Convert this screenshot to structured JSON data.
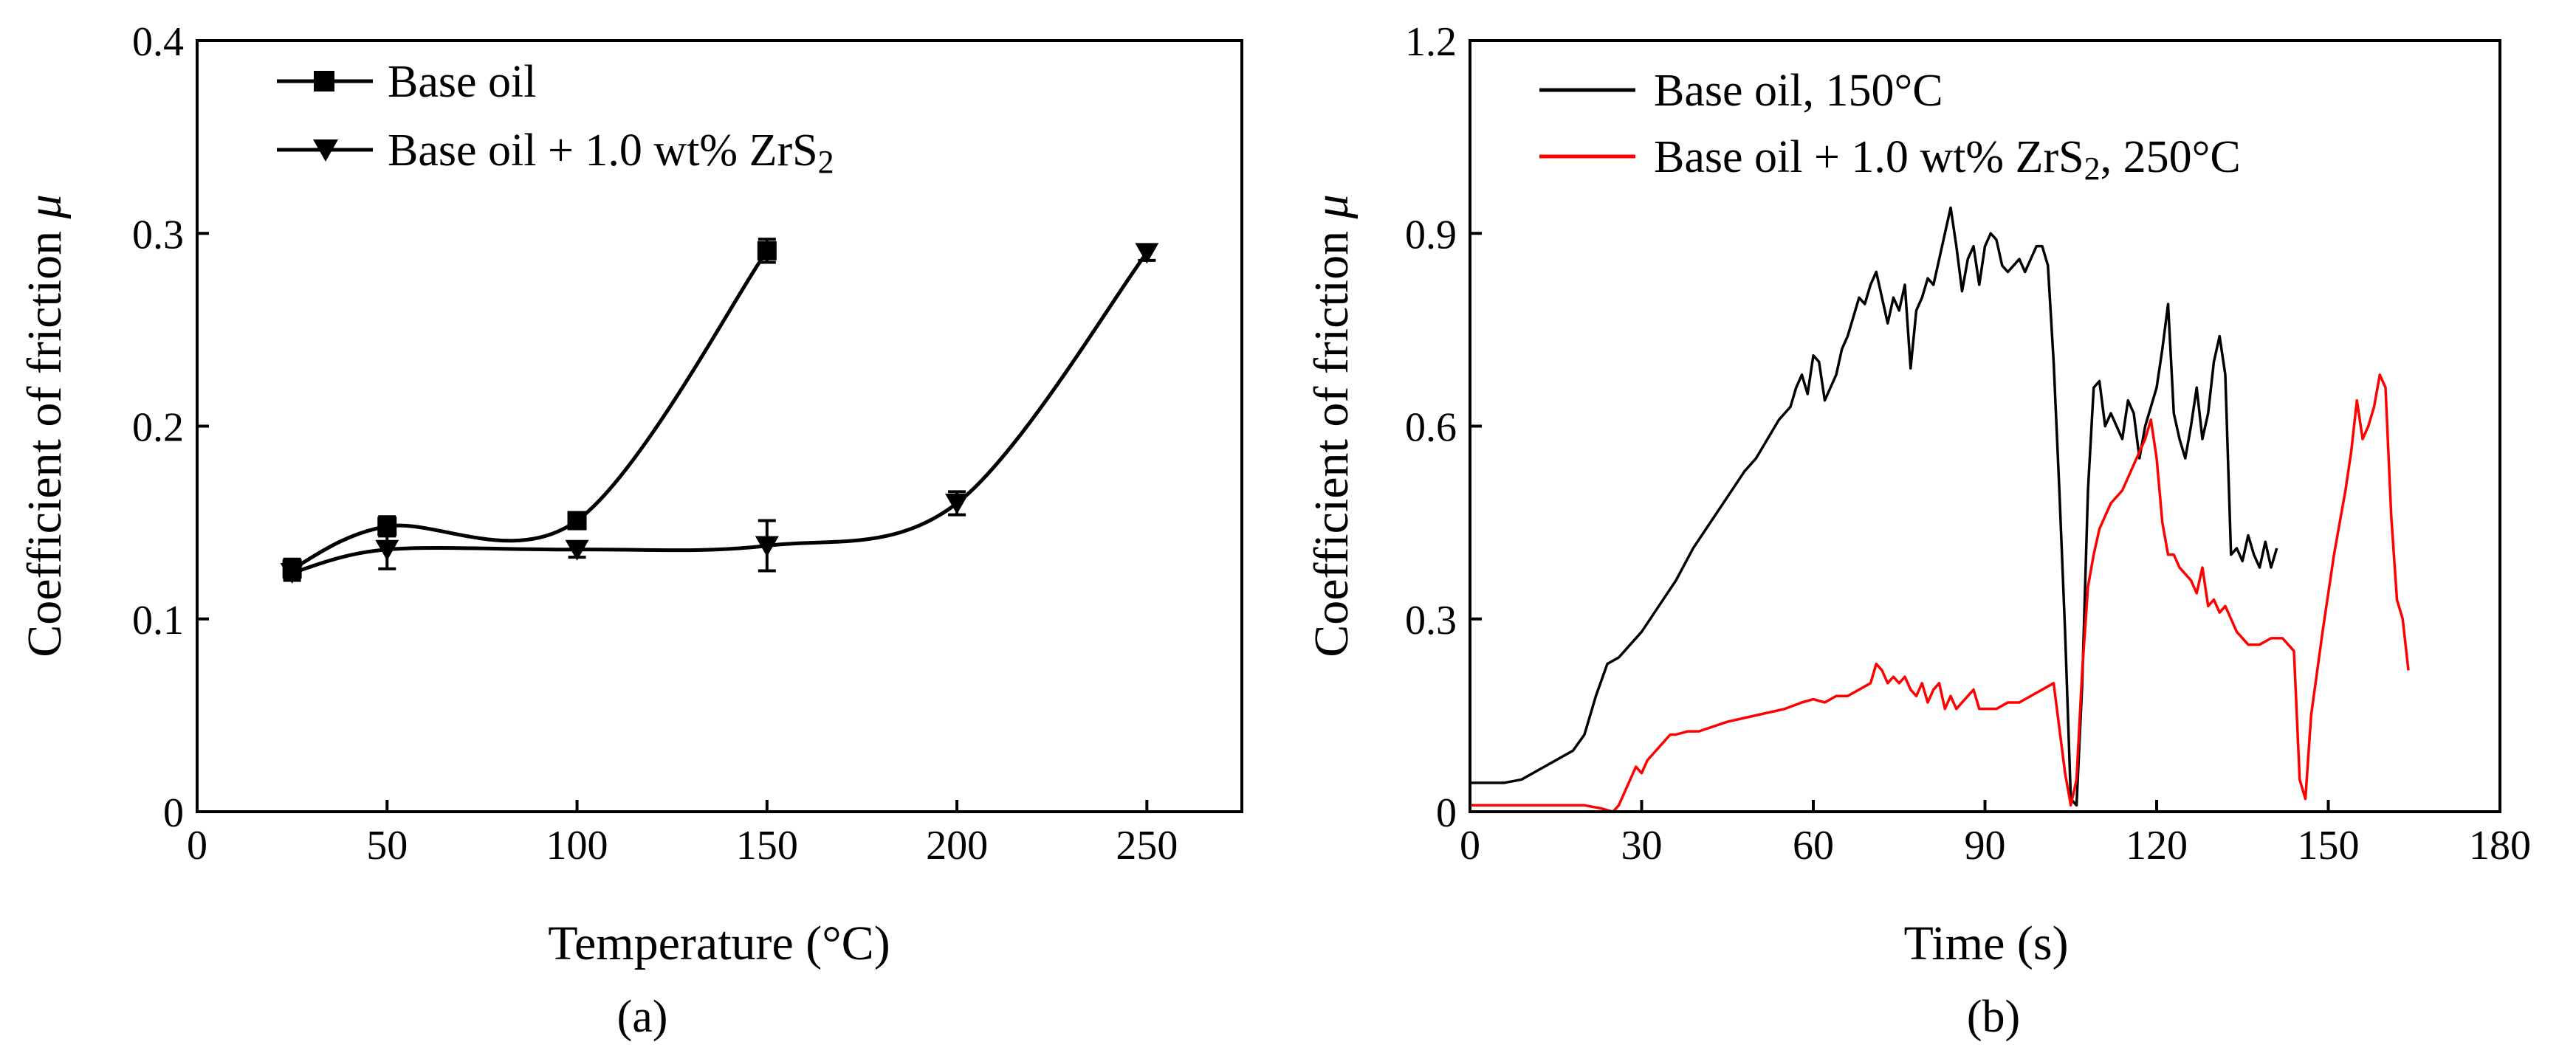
{
  "chart_data": [
    {
      "panel": "(a)",
      "type": "line",
      "xlabel": "Temperature (°C)",
      "ylabel_main": "Coefficient of friction ",
      "ylabel_symbol": "μ",
      "xlim": [
        0,
        275
      ],
      "ylim": [
        0,
        0.4
      ],
      "xticks": [
        0,
        50,
        100,
        150,
        200,
        250
      ],
      "yticks": [
        0,
        0.1,
        0.2,
        0.3,
        0.4
      ],
      "xtick_labels": [
        "0",
        "50",
        "100",
        "150",
        "200",
        "250"
      ],
      "ytick_labels": [
        "0",
        "0.1",
        "0.2",
        "0.3",
        "0.4"
      ],
      "legend_position": "top-left",
      "series": [
        {
          "name": "Base oil",
          "marker": "square",
          "color": "#000000",
          "x": [
            25,
            50,
            100,
            150
          ],
          "y": [
            0.126,
            0.148,
            0.151,
            0.291
          ],
          "err": [
            0.005,
            0.005,
            0.004,
            0.006
          ]
        },
        {
          "name_main": "Base oil + 1.0 wt% ZrS",
          "name_sub": "2",
          "marker": "triangle-down",
          "color": "#000000",
          "x": [
            25,
            50,
            100,
            150,
            200,
            250
          ],
          "y": [
            0.124,
            0.136,
            0.136,
            0.138,
            0.16,
            0.29
          ],
          "err": [
            0.004,
            0.01,
            0.004,
            0.013,
            0.006,
            0.004
          ]
        }
      ]
    },
    {
      "panel": "(b)",
      "type": "line",
      "xlabel": "Time (s)",
      "ylabel_main": "Coefficient of friction ",
      "ylabel_symbol": "μ",
      "xlim": [
        0,
        180
      ],
      "ylim": [
        0,
        1.2
      ],
      "xticks": [
        0,
        30,
        60,
        90,
        120,
        150,
        180
      ],
      "yticks": [
        0,
        0.3,
        0.6,
        0.9,
        1.2
      ],
      "xtick_labels": [
        "0",
        "30",
        "60",
        "90",
        "120",
        "150",
        "180"
      ],
      "ytick_labels": [
        "0",
        "0.3",
        "0.6",
        "0.9",
        "1.2"
      ],
      "legend_position": "top-left",
      "series": [
        {
          "name": "Base oil, 150°C",
          "color": "#000000",
          "x": [
            0,
            3,
            6,
            9,
            12,
            15,
            18,
            20,
            22,
            24,
            26,
            28,
            30,
            33,
            36,
            39,
            42,
            45,
            48,
            50,
            52,
            54,
            56,
            57,
            58,
            59,
            60,
            61,
            62,
            64,
            65,
            66,
            67,
            68,
            69,
            70,
            71,
            72,
            73,
            74,
            75,
            76,
            77,
            78,
            79,
            80,
            81,
            82,
            83,
            84,
            85,
            86,
            87,
            88,
            89,
            90,
            91,
            92,
            93,
            94,
            95,
            96,
            97,
            98,
            99,
            100,
            101,
            102,
            103,
            104,
            105,
            106,
            107,
            108,
            109,
            110,
            111,
            112,
            113,
            114,
            115,
            116,
            117,
            118,
            119,
            120,
            121,
            122,
            123,
            124,
            125,
            126,
            127,
            128,
            129,
            130,
            131,
            132,
            133,
            134,
            135,
            136,
            137,
            138,
            139,
            140,
            141
          ],
          "y": [
            0.045,
            0.045,
            0.045,
            0.05,
            0.065,
            0.08,
            0.095,
            0.12,
            0.18,
            0.23,
            0.24,
            0.26,
            0.28,
            0.32,
            0.36,
            0.41,
            0.45,
            0.49,
            0.53,
            0.55,
            0.58,
            0.61,
            0.63,
            0.66,
            0.68,
            0.65,
            0.71,
            0.7,
            0.64,
            0.68,
            0.72,
            0.74,
            0.77,
            0.8,
            0.79,
            0.82,
            0.84,
            0.8,
            0.76,
            0.8,
            0.78,
            0.82,
            0.69,
            0.78,
            0.8,
            0.83,
            0.82,
            0.86,
            0.9,
            0.94,
            0.88,
            0.81,
            0.86,
            0.88,
            0.82,
            0.88,
            0.9,
            0.89,
            0.85,
            0.84,
            0.85,
            0.86,
            0.84,
            0.86,
            0.88,
            0.88,
            0.85,
            0.7,
            0.5,
            0.28,
            0.02,
            0.01,
            0.2,
            0.5,
            0.66,
            0.67,
            0.6,
            0.62,
            0.6,
            0.58,
            0.64,
            0.62,
            0.55,
            0.6,
            0.63,
            0.66,
            0.72,
            0.79,
            0.62,
            0.58,
            0.55,
            0.6,
            0.66,
            0.58,
            0.62,
            0.7,
            0.74,
            0.68,
            0.4,
            0.41,
            0.39,
            0.43,
            0.4,
            0.38,
            0.42,
            0.38,
            0.41
          ]
        },
        {
          "name_main": "Base oil + 1.0 wt% ZrS",
          "name_sub": "2",
          "name_suffix": ", 250°C",
          "color": "#ff0000",
          "x": [
            0,
            5,
            10,
            15,
            20,
            23,
            25,
            26,
            27,
            28,
            29,
            30,
            31,
            32,
            33,
            34,
            35,
            36,
            38,
            40,
            45,
            50,
            55,
            58,
            60,
            62,
            64,
            66,
            68,
            70,
            71,
            72,
            73,
            74,
            75,
            76,
            77,
            78,
            79,
            80,
            81,
            82,
            83,
            84,
            85,
            86,
            87,
            88,
            89,
            90,
            92,
            94,
            96,
            98,
            100,
            102,
            104,
            105,
            106,
            107,
            108,
            109,
            110,
            112,
            114,
            115,
            116,
            117,
            118,
            119,
            120,
            121,
            122,
            123,
            124,
            125,
            126,
            127,
            128,
            129,
            130,
            131,
            132,
            134,
            136,
            138,
            140,
            142,
            143,
            144,
            145,
            146,
            147,
            149,
            151,
            153,
            154,
            155,
            156,
            157,
            158,
            159,
            160,
            161,
            162,
            163,
            164
          ],
          "y": [
            0.01,
            0.01,
            0.01,
            0.01,
            0.01,
            0.005,
            0.0,
            0.01,
            0.03,
            0.05,
            0.07,
            0.06,
            0.08,
            0.09,
            0.1,
            0.11,
            0.12,
            0.12,
            0.125,
            0.125,
            0.14,
            0.15,
            0.16,
            0.17,
            0.175,
            0.17,
            0.18,
            0.18,
            0.19,
            0.2,
            0.23,
            0.22,
            0.2,
            0.21,
            0.2,
            0.21,
            0.19,
            0.18,
            0.2,
            0.17,
            0.19,
            0.2,
            0.16,
            0.18,
            0.16,
            0.17,
            0.18,
            0.19,
            0.16,
            0.16,
            0.16,
            0.17,
            0.17,
            0.18,
            0.19,
            0.2,
            0.06,
            0.01,
            0.05,
            0.22,
            0.35,
            0.4,
            0.44,
            0.48,
            0.5,
            0.52,
            0.54,
            0.56,
            0.58,
            0.61,
            0.55,
            0.45,
            0.4,
            0.4,
            0.38,
            0.37,
            0.36,
            0.34,
            0.38,
            0.32,
            0.33,
            0.31,
            0.32,
            0.28,
            0.26,
            0.26,
            0.27,
            0.27,
            0.26,
            0.25,
            0.05,
            0.02,
            0.15,
            0.28,
            0.4,
            0.5,
            0.56,
            0.64,
            0.58,
            0.6,
            0.63,
            0.68,
            0.66,
            0.46,
            0.33,
            0.3,
            0.22
          ]
        }
      ]
    }
  ]
}
